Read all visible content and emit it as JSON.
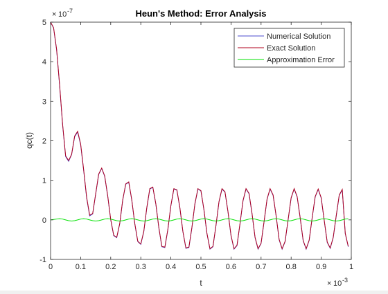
{
  "chart_data": {
    "type": "line",
    "title": "Heun's Method: Error Analysis",
    "xlabel": "t",
    "ylabel": "qc(t)",
    "x_exponent_label": "10",
    "x_exponent": "-3",
    "y_exponent_label": "10",
    "y_exponent": "-7",
    "xlim": [
      0,
      1
    ],
    "ylim": [
      -1,
      5
    ],
    "x_unit_scale": 0.001,
    "y_unit_scale": 1e-07,
    "xticks": [
      "0",
      "0.1",
      "0.2",
      "0.3",
      "0.4",
      "0.5",
      "0.6",
      "0.7",
      "0.8",
      "0.9",
      "1"
    ],
    "yticks": [
      "-1",
      "0",
      "1",
      "2",
      "3",
      "4",
      "5"
    ],
    "grid": false,
    "legend_position": "top-right",
    "x": [
      0,
      0.01,
      0.02,
      0.03,
      0.04,
      0.05,
      0.06,
      0.07,
      0.08,
      0.09,
      0.1,
      0.11,
      0.12,
      0.13,
      0.14,
      0.15,
      0.16,
      0.17,
      0.18,
      0.19,
      0.2,
      0.21,
      0.22,
      0.23,
      0.24,
      0.25,
      0.26,
      0.27,
      0.28,
      0.29,
      0.3,
      0.31,
      0.32,
      0.33,
      0.34,
      0.35,
      0.36,
      0.37,
      0.38,
      0.39,
      0.4,
      0.41,
      0.42,
      0.43,
      0.44,
      0.45,
      0.46,
      0.47,
      0.48,
      0.49,
      0.5,
      0.51,
      0.52,
      0.53,
      0.54,
      0.55,
      0.56,
      0.57,
      0.58,
      0.59,
      0.6,
      0.61,
      0.62,
      0.63,
      0.64,
      0.65,
      0.66,
      0.67,
      0.68,
      0.69,
      0.7,
      0.71,
      0.72,
      0.73,
      0.74,
      0.75,
      0.76,
      0.77,
      0.78,
      0.79,
      0.8,
      0.81,
      0.82,
      0.83,
      0.84,
      0.85,
      0.86,
      0.87,
      0.88,
      0.89,
      0.9,
      0.91,
      0.92,
      0.93,
      0.94,
      0.95,
      0.96,
      0.97,
      0.98,
      0.99
    ],
    "series": [
      {
        "name": "Numerical Solution",
        "color": "#4b4bcf",
        "values": [
          5.0,
          4.85,
          4.3,
          3.4,
          2.4,
          1.6,
          1.48,
          1.65,
          2.1,
          2.22,
          1.9,
          1.25,
          0.55,
          0.1,
          0.15,
          0.65,
          1.15,
          1.3,
          1.1,
          0.6,
          0.0,
          -0.4,
          -0.45,
          -0.1,
          0.5,
          0.9,
          0.95,
          0.5,
          -0.1,
          -0.55,
          -0.62,
          -0.3,
          0.3,
          0.78,
          0.82,
          0.4,
          -0.2,
          -0.68,
          -0.7,
          -0.25,
          0.35,
          0.78,
          0.75,
          0.3,
          -0.3,
          -0.72,
          -0.7,
          -0.2,
          0.4,
          0.78,
          0.73,
          0.25,
          -0.35,
          -0.74,
          -0.68,
          -0.15,
          0.45,
          0.78,
          0.7,
          0.2,
          -0.4,
          -0.74,
          -0.65,
          -0.1,
          0.48,
          0.78,
          0.66,
          0.15,
          -0.45,
          -0.74,
          -0.6,
          -0.05,
          0.52,
          0.78,
          0.62,
          0.1,
          -0.5,
          -0.74,
          -0.55,
          0.0,
          0.55,
          0.78,
          0.58,
          0.05,
          -0.53,
          -0.74,
          -0.52,
          0.05,
          0.58,
          0.77,
          0.55,
          -0.02,
          -0.57,
          -0.72,
          -0.45,
          0.1,
          0.62,
          0.76,
          -0.35,
          -0.68
        ]
      },
      {
        "name": "Exact Solution",
        "color": "#b0001e",
        "values": [
          5.0,
          4.86,
          4.32,
          3.42,
          2.42,
          1.62,
          1.5,
          1.66,
          2.12,
          2.24,
          1.92,
          1.27,
          0.57,
          0.12,
          0.16,
          0.66,
          1.16,
          1.31,
          1.11,
          0.61,
          0.01,
          -0.39,
          -0.44,
          -0.09,
          0.51,
          0.91,
          0.96,
          0.51,
          -0.09,
          -0.54,
          -0.61,
          -0.29,
          0.31,
          0.79,
          0.83,
          0.41,
          -0.19,
          -0.67,
          -0.69,
          -0.24,
          0.36,
          0.79,
          0.76,
          0.31,
          -0.29,
          -0.71,
          -0.69,
          -0.19,
          0.41,
          0.79,
          0.74,
          0.26,
          -0.34,
          -0.73,
          -0.67,
          -0.14,
          0.46,
          0.79,
          0.71,
          0.21,
          -0.39,
          -0.73,
          -0.64,
          -0.09,
          0.49,
          0.79,
          0.67,
          0.16,
          -0.44,
          -0.73,
          -0.59,
          -0.04,
          0.53,
          0.79,
          0.63,
          0.11,
          -0.49,
          -0.73,
          -0.54,
          0.01,
          0.56,
          0.79,
          0.59,
          0.06,
          -0.52,
          -0.73,
          -0.51,
          0.06,
          0.59,
          0.78,
          0.56,
          -0.01,
          -0.56,
          -0.71,
          -0.44,
          0.11,
          0.63,
          0.77,
          -0.34,
          -0.67
        ]
      },
      {
        "name": "Approximation Error",
        "color": "#00e000",
        "values": [
          0.0,
          0.01,
          0.02,
          0.03,
          0.02,
          0.0,
          -0.02,
          -0.03,
          -0.02,
          0.0,
          0.02,
          0.03,
          0.02,
          0.0,
          -0.02,
          -0.03,
          -0.02,
          0.0,
          0.02,
          0.03,
          0.02,
          0.0,
          -0.02,
          -0.03,
          -0.02,
          0.0,
          0.02,
          0.03,
          0.02,
          0.0,
          -0.02,
          -0.03,
          -0.02,
          0.0,
          0.02,
          0.03,
          0.02,
          0.0,
          -0.02,
          -0.03,
          -0.02,
          0.0,
          0.02,
          0.03,
          0.02,
          0.0,
          -0.02,
          -0.03,
          -0.02,
          0.0,
          0.02,
          0.03,
          0.02,
          0.0,
          -0.02,
          -0.03,
          -0.02,
          0.0,
          0.02,
          0.03,
          0.02,
          0.0,
          -0.02,
          -0.03,
          -0.02,
          0.0,
          0.02,
          0.03,
          0.02,
          0.0,
          -0.02,
          -0.03,
          -0.02,
          0.0,
          0.02,
          0.03,
          0.02,
          0.0,
          -0.02,
          -0.03,
          -0.02,
          0.0,
          0.02,
          0.03,
          0.02,
          0.0,
          -0.02,
          -0.03,
          -0.02,
          0.0,
          0.02,
          0.03,
          0.02,
          0.0,
          -0.02,
          -0.03,
          -0.02,
          0.0,
          0.02,
          0.03
        ]
      }
    ]
  }
}
